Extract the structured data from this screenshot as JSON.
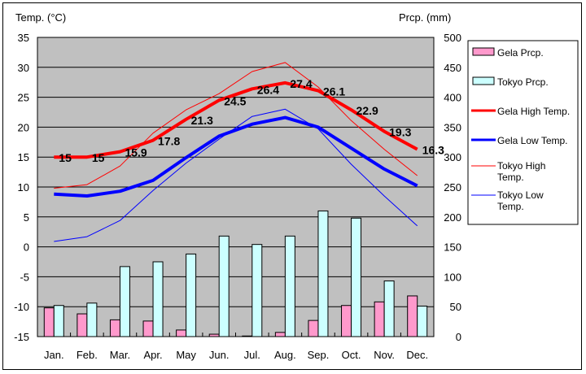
{
  "chart_data": {
    "type": "bar+line",
    "title": "",
    "ylabel_left": "Temp. (°C)",
    "ylabel_right": "Prcp. (mm)",
    "ylim_left": [
      -15,
      35
    ],
    "ylim_right": [
      0,
      500
    ],
    "yticks_left": [
      "35",
      "30",
      "25",
      "20",
      "15",
      "10",
      "5",
      "0",
      "-5",
      "-10",
      "-15"
    ],
    "yticks_right": [
      "500",
      "450",
      "400",
      "350",
      "300",
      "250",
      "200",
      "150",
      "100",
      "50",
      "0"
    ],
    "grid": true,
    "legend_position": "right",
    "categories": [
      "Jan.",
      "Feb.",
      "Mar.",
      "Apr.",
      "May",
      "Jun.",
      "Jul.",
      "Aug.",
      "Sep.",
      "Oct.",
      "Nov.",
      "Dec."
    ],
    "bar_series": [
      {
        "name": "Gela Prcp.",
        "color": "#ff99cc",
        "axis": "right",
        "values": [
          48,
          38,
          28,
          26,
          11,
          4,
          1,
          7,
          27,
          52,
          58,
          68
        ]
      },
      {
        "name": "Tokyo Prcp.",
        "color": "#ccffff",
        "axis": "right",
        "values": [
          52,
          56,
          117,
          125,
          138,
          168,
          154,
          168,
          210,
          198,
          93,
          51
        ]
      }
    ],
    "line_series": [
      {
        "name": "Gela High Temp.",
        "color": "#ff0000",
        "width": "thick",
        "axis": "left",
        "values": [
          15,
          15,
          15.9,
          17.8,
          21.3,
          24.5,
          26.4,
          27.4,
          26.1,
          22.9,
          19.3,
          16.3
        ],
        "labels": [
          "15",
          "15",
          "15.9",
          "17.8",
          "21.3",
          "24.5",
          "26.4",
          "27.4",
          "26.1",
          "22.9",
          "19.3",
          "16.3"
        ]
      },
      {
        "name": "Gela Low Temp.",
        "color": "#0000ff",
        "width": "thick",
        "axis": "left",
        "values": [
          8.8,
          8.5,
          9.3,
          11.1,
          14.9,
          18.5,
          20.5,
          21.6,
          20.0,
          16.5,
          13.0,
          10.2
        ]
      },
      {
        "name": "Tokyo High Temp.",
        "color": "#ff0000",
        "width": "thin",
        "axis": "left",
        "values": [
          9.8,
          10.4,
          13.5,
          19.0,
          22.9,
          25.6,
          29.3,
          30.8,
          26.7,
          21.1,
          16.3,
          11.9
        ]
      },
      {
        "name": "Tokyo Low Temp.",
        "color": "#0000ff",
        "width": "thin",
        "axis": "left",
        "values": [
          0.9,
          1.7,
          4.4,
          9.4,
          14.0,
          18.0,
          21.8,
          23.0,
          19.7,
          13.8,
          8.5,
          3.5
        ]
      }
    ],
    "legend": [
      {
        "label": "Gela Prcp."
      },
      {
        "label": "Tokyo Prcp."
      },
      {
        "label": "Gela High Temp."
      },
      {
        "label": "Gela Low Temp."
      },
      {
        "label_lines": [
          "Tokyo High",
          "Temp."
        ]
      },
      {
        "label_lines": [
          "Tokyo Low",
          "Temp."
        ]
      }
    ]
  }
}
